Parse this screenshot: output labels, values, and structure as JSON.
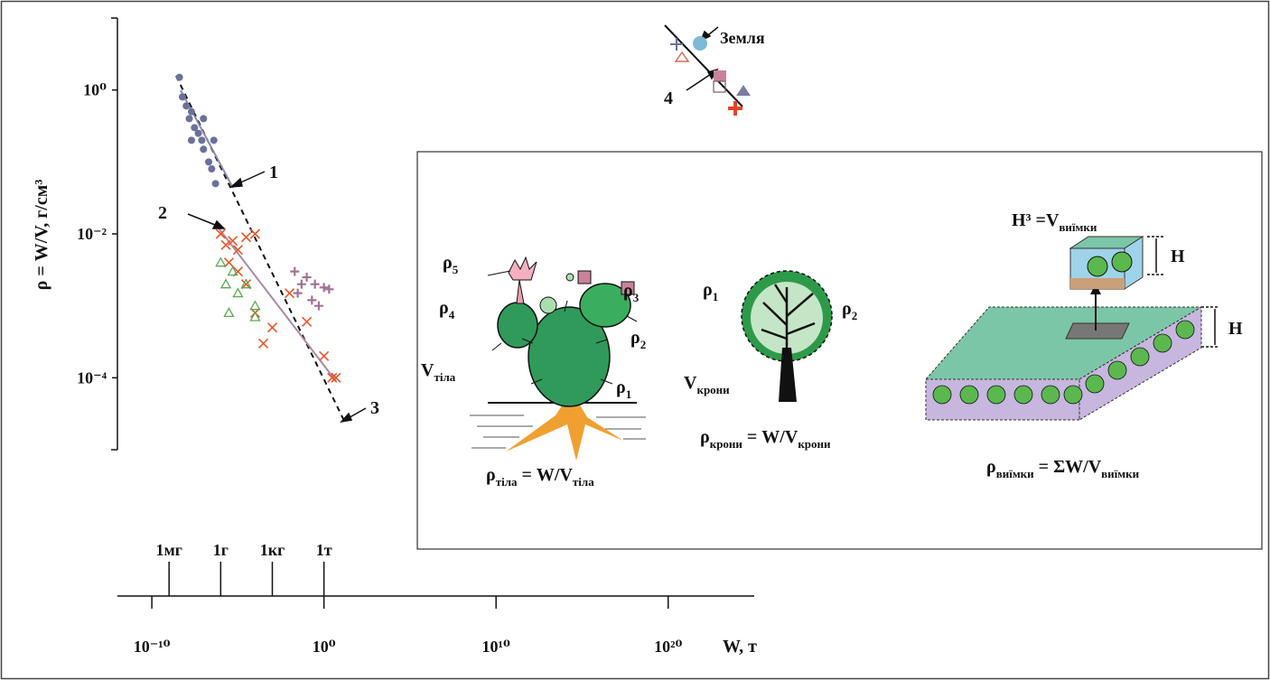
{
  "chart_data": {
    "type": "scatter",
    "xlabel": "W, т",
    "ylabel": "ρ = W/V, г/см³",
    "log_x": true,
    "log_y": true,
    "xlim": [
      1e-12,
      1e+25
    ],
    "ylim": [
      1e-05,
      10
    ],
    "xticks": [
      {
        "value": 1e-10,
        "label": "10⁻¹⁰"
      },
      {
        "value": 1,
        "label": "10⁰"
      },
      {
        "value": 10000000000.0,
        "label": "10¹⁰"
      },
      {
        "value": 1e+20,
        "label": "10²⁰"
      }
    ],
    "yticks": [
      {
        "value": 1,
        "label": "10⁰"
      },
      {
        "value": 0.01,
        "label": "10⁻²"
      },
      {
        "value": 0.0001,
        "label": "10⁻⁴"
      }
    ],
    "mass_ticks": [
      {
        "value": 1e-09,
        "label": "1мг"
      },
      {
        "value": 1e-06,
        "label": "1г"
      },
      {
        "value": 0.001,
        "label": "1кг"
      },
      {
        "value": 1,
        "label": "1т"
      }
    ],
    "series": [
      {
        "marker": "circle",
        "color": "#6b7199",
        "x": [
          4e-09,
          6e-09,
          1e-08,
          1.5e-08,
          2e-08,
          3e-08,
          5e-08,
          8e-08,
          1e-07,
          2e-07,
          3e-07,
          5e-07,
          4e-07,
          1e-07,
          2e-08
        ],
        "values": [
          1.5,
          0.8,
          0.6,
          0.4,
          0.5,
          0.3,
          0.25,
          0.2,
          0.15,
          0.1,
          0.08,
          0.05,
          0.2,
          0.4,
          0.2
        ]
      },
      {
        "marker": "x",
        "color": "#e8562a",
        "x": [
          1e-06,
          2e-06,
          5e-06,
          1e-05,
          3e-05,
          0.0001,
          3e-06,
          1e-05,
          3e-05,
          0.0001,
          0.001,
          0.0003,
          0.01,
          0.1,
          1,
          3,
          5
        ],
        "values": [
          0.01,
          0.007,
          0.008,
          0.006,
          0.009,
          0.01,
          0.004,
          0.003,
          0.002,
          0.0008,
          0.0005,
          0.0003,
          0.0015,
          0.0006,
          0.0002,
          0.0001,
          0.0001
        ]
      },
      {
        "marker": "triangle",
        "color": "#5aaa55",
        "x": [
          1e-06,
          2e-06,
          5e-06,
          1e-05,
          3e-05,
          0.0001,
          3e-06,
          0.0001
        ],
        "values": [
          0.004,
          0.002,
          0.003,
          0.0015,
          0.002,
          0.001,
          0.0008,
          0.0007
        ]
      },
      {
        "marker": "plus",
        "color": "#a27493",
        "x": [
          0.02,
          0.05,
          0.1,
          0.3,
          1,
          0.2,
          0.5,
          2,
          0.03
        ],
        "values": [
          0.003,
          0.002,
          0.0025,
          0.002,
          0.0018,
          0.0012,
          0.001,
          0.0017,
          0.0015
        ]
      }
    ],
    "annotations": [
      "1",
      "2",
      "3",
      "4"
    ],
    "earth": "Земля"
  },
  "inset": {
    "labels": [
      {
        "parts": [
          {
            "t": "ρ"
          },
          {
            "s": "5"
          }
        ]
      },
      {
        "parts": [
          {
            "t": "ρ"
          },
          {
            "s": "4"
          }
        ]
      },
      {
        "parts": [
          {
            "t": "ρ"
          },
          {
            "s": "3"
          }
        ]
      },
      {
        "parts": [
          {
            "t": "ρ"
          },
          {
            "s": "2"
          }
        ]
      },
      {
        "parts": [
          {
            "t": "ρ"
          },
          {
            "s": "1"
          }
        ]
      },
      {
        "parts": [
          {
            "t": "V"
          },
          {
            "s": "тіла"
          }
        ]
      },
      {
        "parts": [
          {
            "t": "ρ"
          },
          {
            "s": "тіла"
          },
          {
            "t": " =  W/V"
          },
          {
            "s": "тіла"
          }
        ]
      },
      {
        "parts": [
          {
            "t": "ρ"
          },
          {
            "s": "1"
          }
        ]
      },
      {
        "parts": [
          {
            "t": "ρ"
          },
          {
            "s": "2"
          }
        ]
      },
      {
        "parts": [
          {
            "t": "V"
          },
          {
            "s": "крони"
          }
        ]
      },
      {
        "parts": [
          {
            "t": "ρ"
          },
          {
            "s": "крони"
          },
          {
            "t": " = W/V"
          },
          {
            "s": "крони"
          }
        ]
      },
      {
        "parts": [
          {
            "t": "H³ =V"
          },
          {
            "s": "виїмки"
          }
        ]
      },
      {
        "parts": [
          {
            "t": "H"
          }
        ]
      },
      {
        "parts": [
          {
            "t": "H"
          }
        ]
      },
      {
        "parts": [
          {
            "t": "ρ"
          },
          {
            "s": "виїмки"
          },
          {
            "t": " = ΣW/V"
          },
          {
            "s": "виїмки"
          }
        ]
      }
    ]
  }
}
